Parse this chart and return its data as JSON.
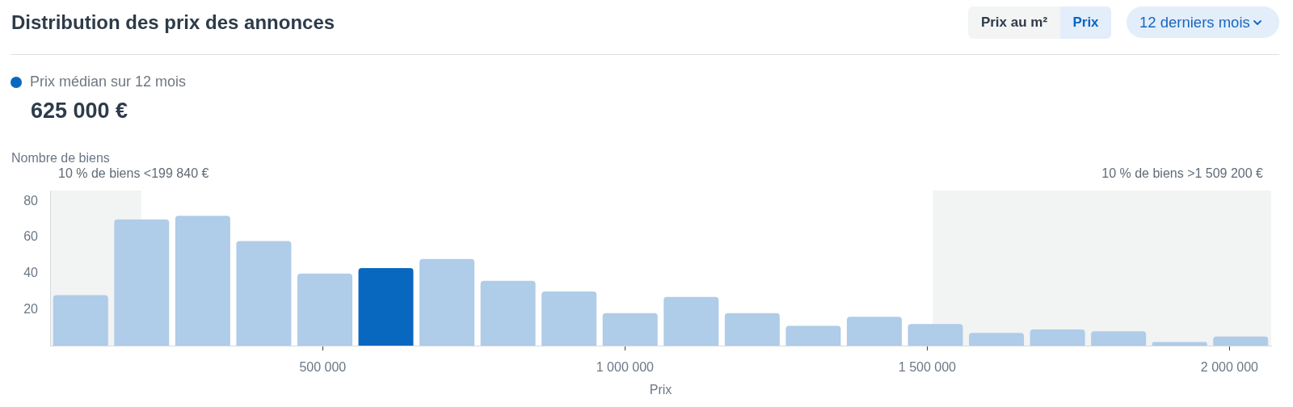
{
  "chart_data": {
    "type": "histogram",
    "title": "Distribution des prix des annonces",
    "xlabel": "Prix",
    "ylabel": "Nombre de biens",
    "bins": [
      49000,
      150000,
      251000,
      352000,
      453000,
      554000,
      655000,
      756000,
      857000,
      958000,
      1059000,
      1160000,
      1261000,
      1362000,
      1463000,
      1564000,
      1665000,
      1766000,
      1867000,
      1968000,
      2069000
    ],
    "series": [
      {
        "color": "#afcce8",
        "values": [
          28,
          70,
          72,
          58,
          40,
          null,
          48,
          36,
          30,
          18,
          27,
          18,
          11,
          16,
          12,
          7,
          9,
          8,
          2,
          5
        ]
      },
      {
        "name": "Prix médian sur 12 mois",
        "color": "#0868c0",
        "values": [
          null,
          null,
          null,
          null,
          null,
          43,
          null,
          null,
          null,
          null,
          null,
          null,
          null,
          null,
          null,
          null,
          null,
          null,
          null,
          null
        ]
      }
    ],
    "xlim": [
      49000,
      2069000
    ],
    "xticks": [
      {
        "value": 500000,
        "label": "500 000"
      },
      {
        "value": 1000000,
        "label": "1 000 000"
      },
      {
        "value": 1500000,
        "label": "1 500 000"
      },
      {
        "value": 2000000,
        "label": "2 000 000"
      }
    ],
    "ylim": [
      0,
      86
    ],
    "yticks": [
      20,
      40,
      60,
      80
    ],
    "bands": [
      {
        "axis": "x",
        "from": 49000,
        "to": 199840,
        "label": "10 % de biens <199 840 €",
        "color": "#f2f3f3"
      },
      {
        "axis": "x",
        "from": 1509200,
        "to": 2069000,
        "label": "10 % de biens >1 509 200 €",
        "color": "#f2f3f3"
      }
    ],
    "legend": "top left",
    "annotations": [
      "Prix au m²",
      "Prix",
      "12 derniers mois",
      "625 000 €"
    ]
  }
}
